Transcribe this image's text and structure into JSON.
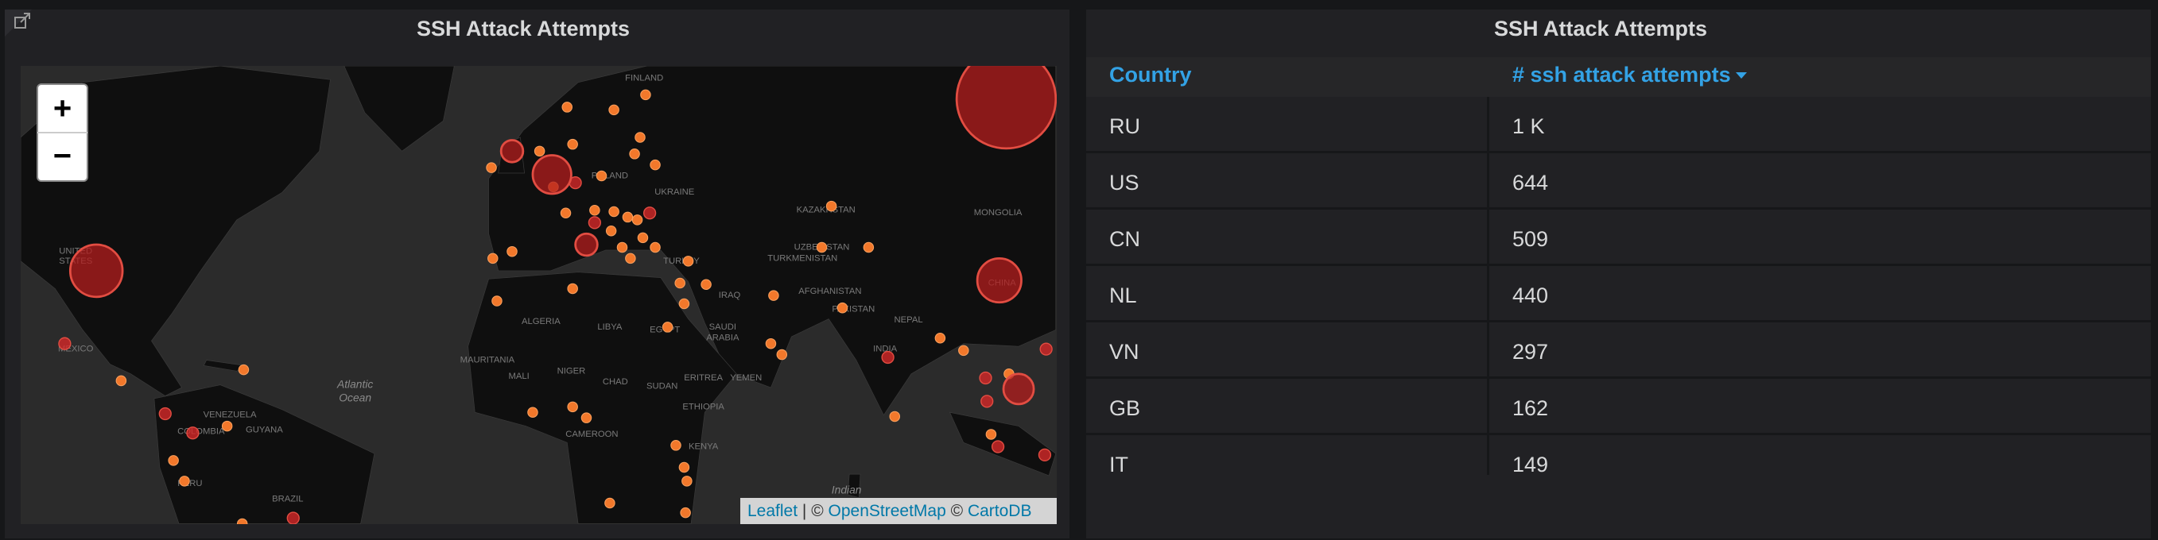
{
  "map_panel": {
    "title": "SSH Attack Attempts",
    "zoom_in": "+",
    "zoom_out": "−",
    "labels": [
      "FINLAND",
      "UNITED",
      "STATES",
      "MEXICO",
      "KAZAKHSTAN",
      "MONGOLIA",
      "UZBEKISTAN",
      "TURKMENISTAN",
      "AFGHANISTAN",
      "PAKISTAN",
      "NEPAL",
      "INDIA",
      "CHINA",
      "ALGERIA",
      "LIBYA",
      "EGYPT",
      "SAUDI",
      "ARABIA",
      "IRAQ",
      "YEMEN",
      "MAURITANIA",
      "MALI",
      "NIGER",
      "CHAD",
      "SUDAN",
      "ETHIOPIA",
      "ERITREA",
      "KENYA",
      "CAMEROON",
      "Atlantic",
      "Ocean",
      "Indian",
      "BRAZIL",
      "PERU",
      "VENEZUELA",
      "GUYANA",
      "COLOMBIA",
      "TURKEY",
      "UKRAINE",
      "POLAND"
    ],
    "attribution": [
      "Leaflet",
      "| ©",
      "OpenStreetMap",
      "©",
      "CartoDB"
    ]
  },
  "table_panel": {
    "title": "SSH Attack Attempts",
    "columns": [
      "Country",
      "# ssh attack attempts"
    ],
    "rows": [
      [
        "RU",
        "1 K"
      ],
      [
        "US",
        "644"
      ],
      [
        "CN",
        "509"
      ],
      [
        "NL",
        "440"
      ],
      [
        "VN",
        "297"
      ],
      [
        "GB",
        "162"
      ],
      [
        "IT",
        "149"
      ]
    ]
  }
}
